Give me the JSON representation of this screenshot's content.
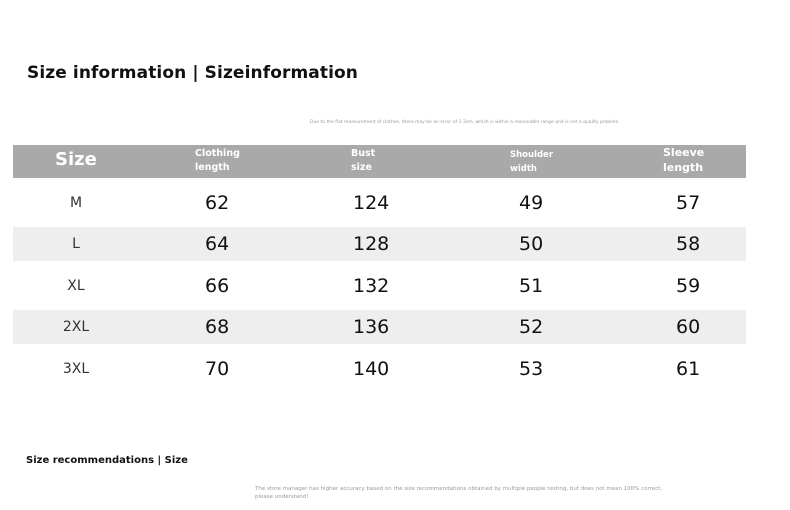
{
  "title": "Size information | Sizeinformation",
  "note": "Due to the flat measurement of clothes, there may be an error of 1-3cm, which is within a reasonable range and is not a quality problem",
  "header": {
    "size": "Size",
    "clothing_length": [
      "Clothing",
      "length"
    ],
    "bust_size": [
      "Bust",
      "size"
    ],
    "shoulder_width": [
      "Shoulder",
      "width"
    ],
    "sleeve_length": [
      "Sleeve",
      "length"
    ]
  },
  "rows": [
    {
      "size": "M",
      "clothing_length": "62",
      "bust_size": "124",
      "shoulder_width": "49",
      "sleeve_length": "57"
    },
    {
      "size": "L",
      "clothing_length": "64",
      "bust_size": "128",
      "shoulder_width": "50",
      "sleeve_length": "58"
    },
    {
      "size": "XL",
      "clothing_length": "66",
      "bust_size": "132",
      "shoulder_width": "51",
      "sleeve_length": "59"
    },
    {
      "size": "2XL",
      "clothing_length": "68",
      "bust_size": "136",
      "shoulder_width": "52",
      "sleeve_length": "60"
    },
    {
      "size": "3XL",
      "clothing_length": "70",
      "bust_size": "140",
      "shoulder_width": "53",
      "sleeve_length": "61"
    }
  ],
  "recommendations_title": "Size recommendations | Size",
  "footnote": [
    "The store manager has higher accuracy based on the size recommendations obtained by multiple people testing, but does not mean 100% correct,",
    "please understand!"
  ],
  "colors": {
    "header_bg": "#a9a9a9",
    "stripe_bg": "#eeeeee",
    "header_text": "#ffffff"
  }
}
